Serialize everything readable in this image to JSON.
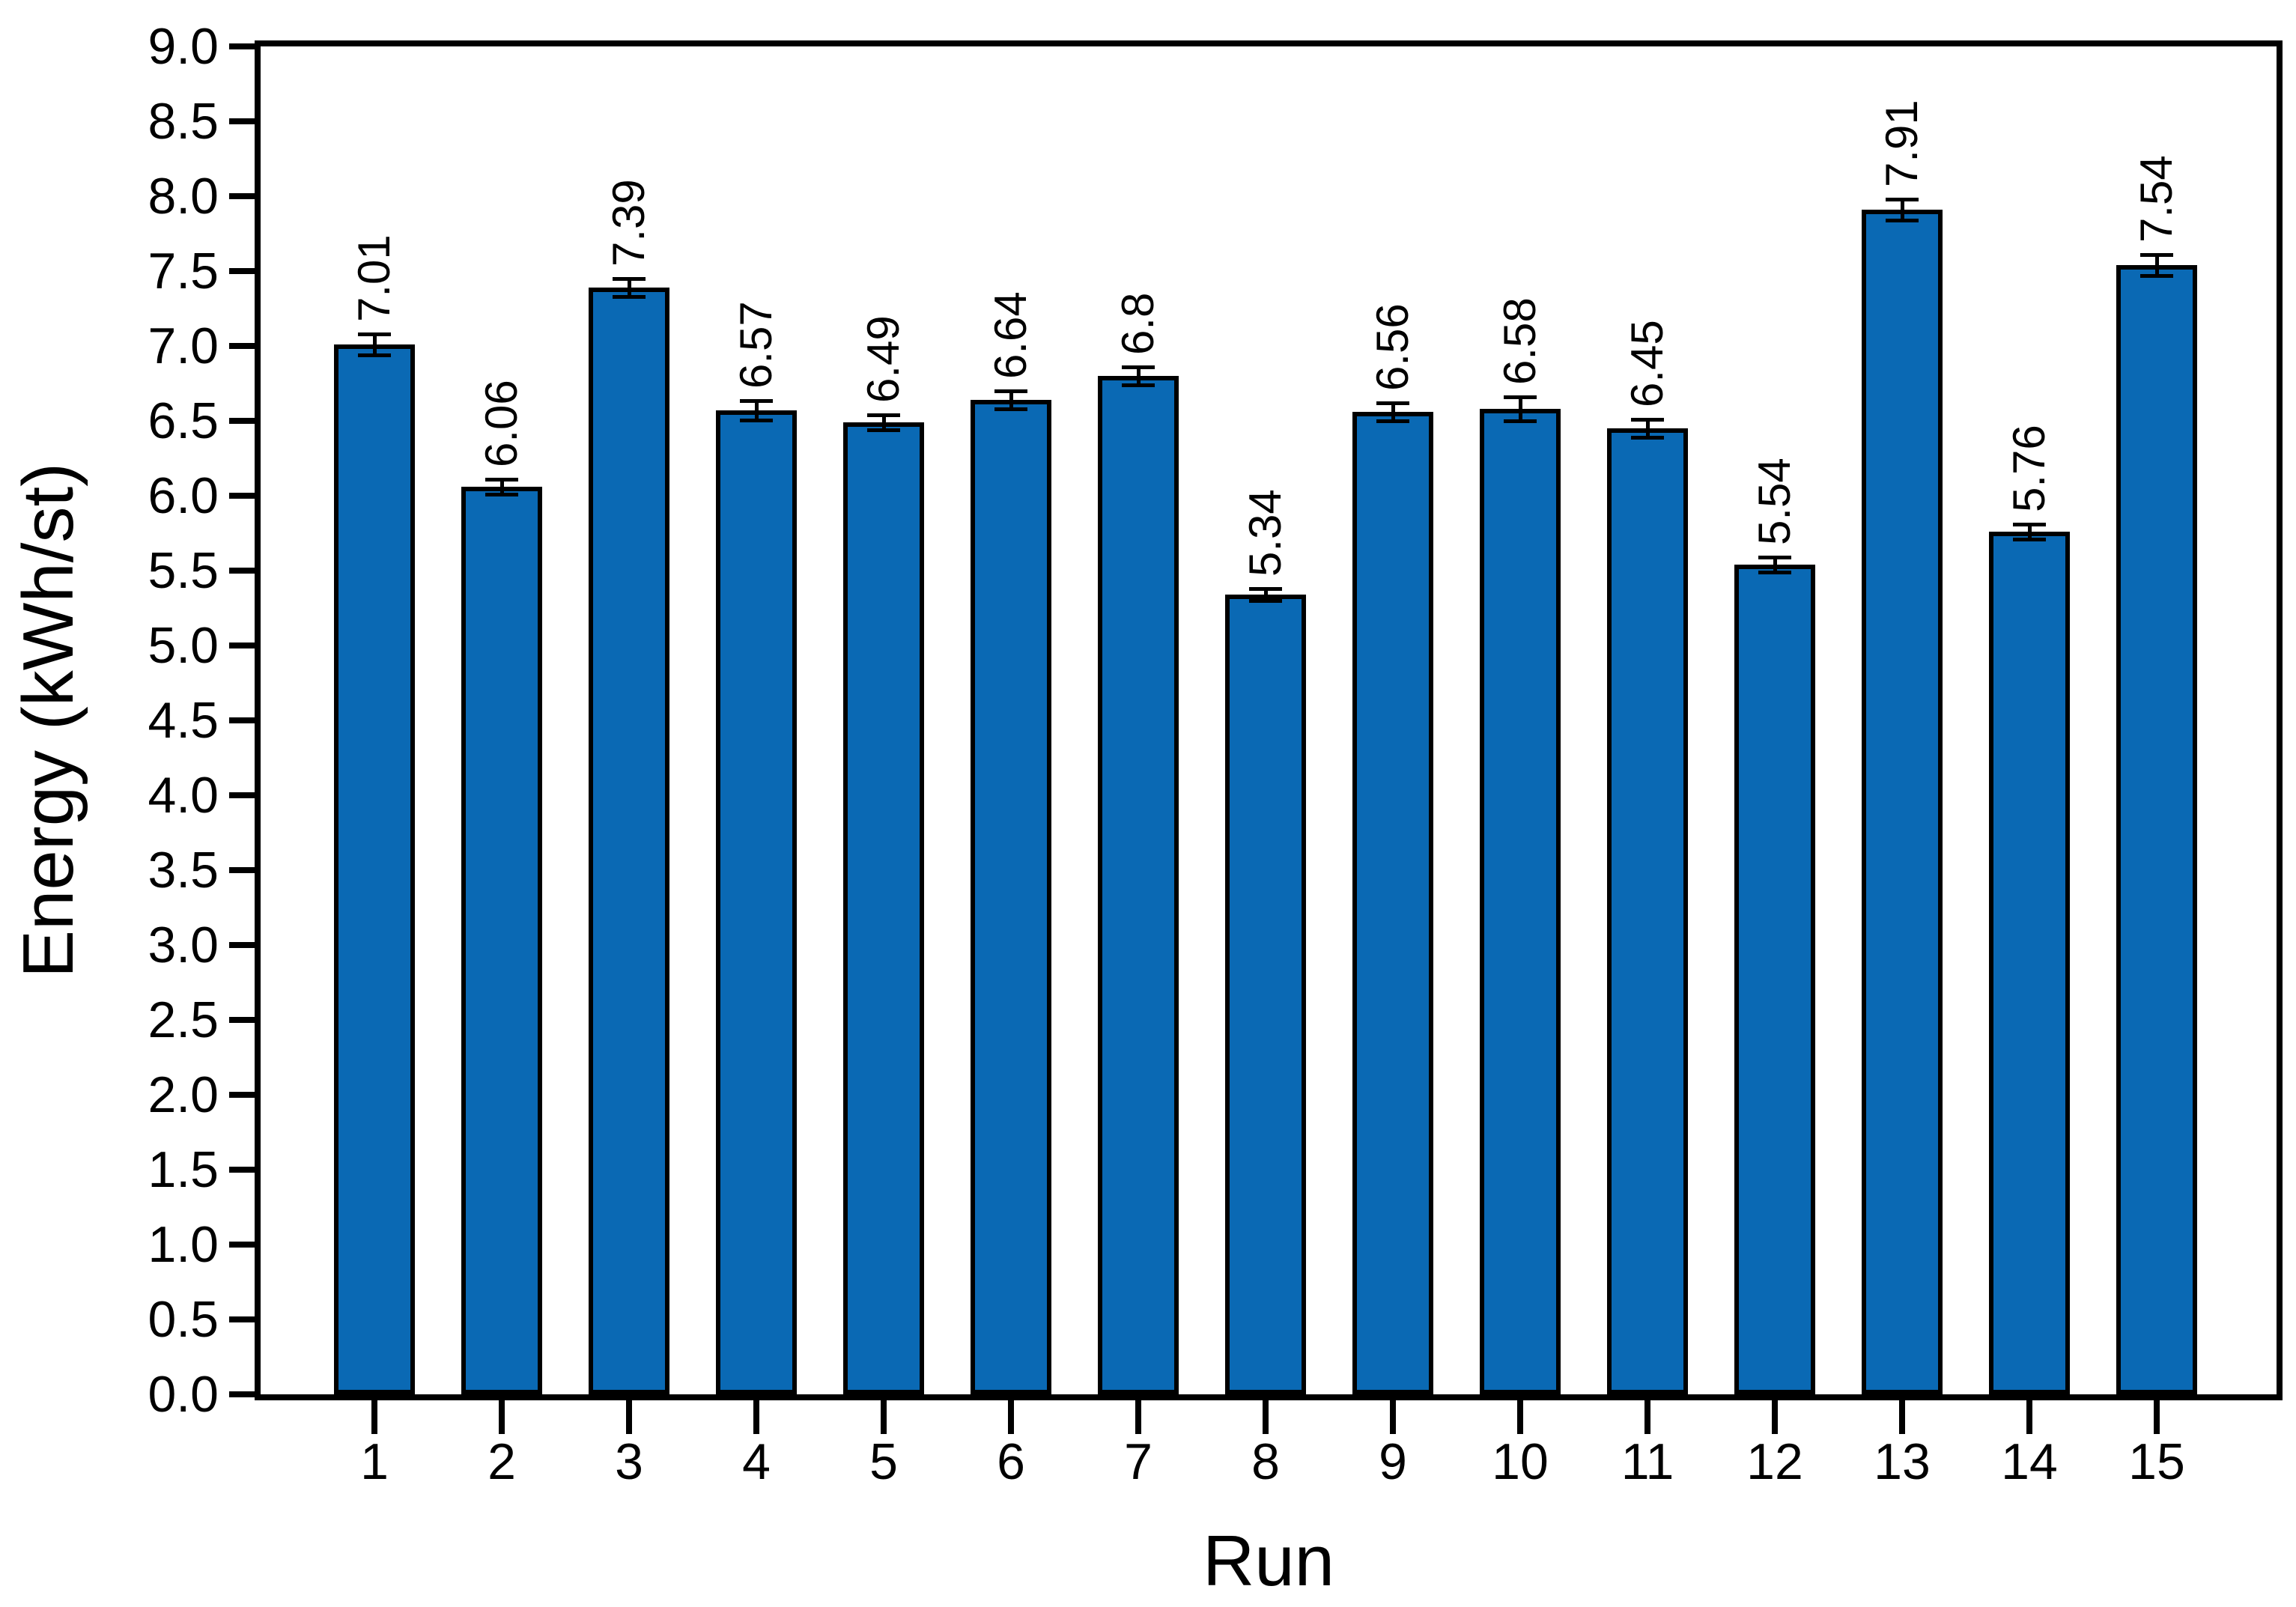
{
  "chart_data": {
    "type": "bar",
    "title": "",
    "xlabel": "Run",
    "ylabel": "Energy (kWh/st)",
    "categories": [
      "1",
      "2",
      "3",
      "4",
      "5",
      "6",
      "7",
      "8",
      "9",
      "10",
      "11",
      "12",
      "13",
      "14",
      "15"
    ],
    "values": [
      7.01,
      6.06,
      7.39,
      6.57,
      6.49,
      6.64,
      6.8,
      5.34,
      6.56,
      6.58,
      6.45,
      5.54,
      7.91,
      5.76,
      7.54
    ],
    "value_labels": [
      "7.01",
      "6.06",
      "7.39",
      "6.57",
      "6.49",
      "6.64",
      "6.8",
      "5.34",
      "6.56",
      "6.58",
      "6.45",
      "5.54",
      "7.91",
      "5.76",
      "7.54"
    ],
    "errors": [
      0.07,
      0.05,
      0.06,
      0.065,
      0.05,
      0.06,
      0.06,
      0.04,
      0.06,
      0.08,
      0.06,
      0.05,
      0.07,
      0.05,
      0.07
    ],
    "ylim": [
      0.0,
      9.0
    ],
    "ytick_step": 0.5,
    "ytick_labels": [
      "0.0",
      "0.5",
      "1.0",
      "1.5",
      "2.0",
      "2.5",
      "3.0",
      "3.5",
      "4.0",
      "4.5",
      "5.0",
      "5.5",
      "6.0",
      "6.5",
      "7.0",
      "7.5",
      "8.0",
      "8.5",
      "9.0"
    ],
    "bar_color": "#0a69b4",
    "edge_color": "#000000",
    "error_color": "#000000",
    "background": "#ffffff",
    "grid": "off",
    "legend": "none"
  }
}
